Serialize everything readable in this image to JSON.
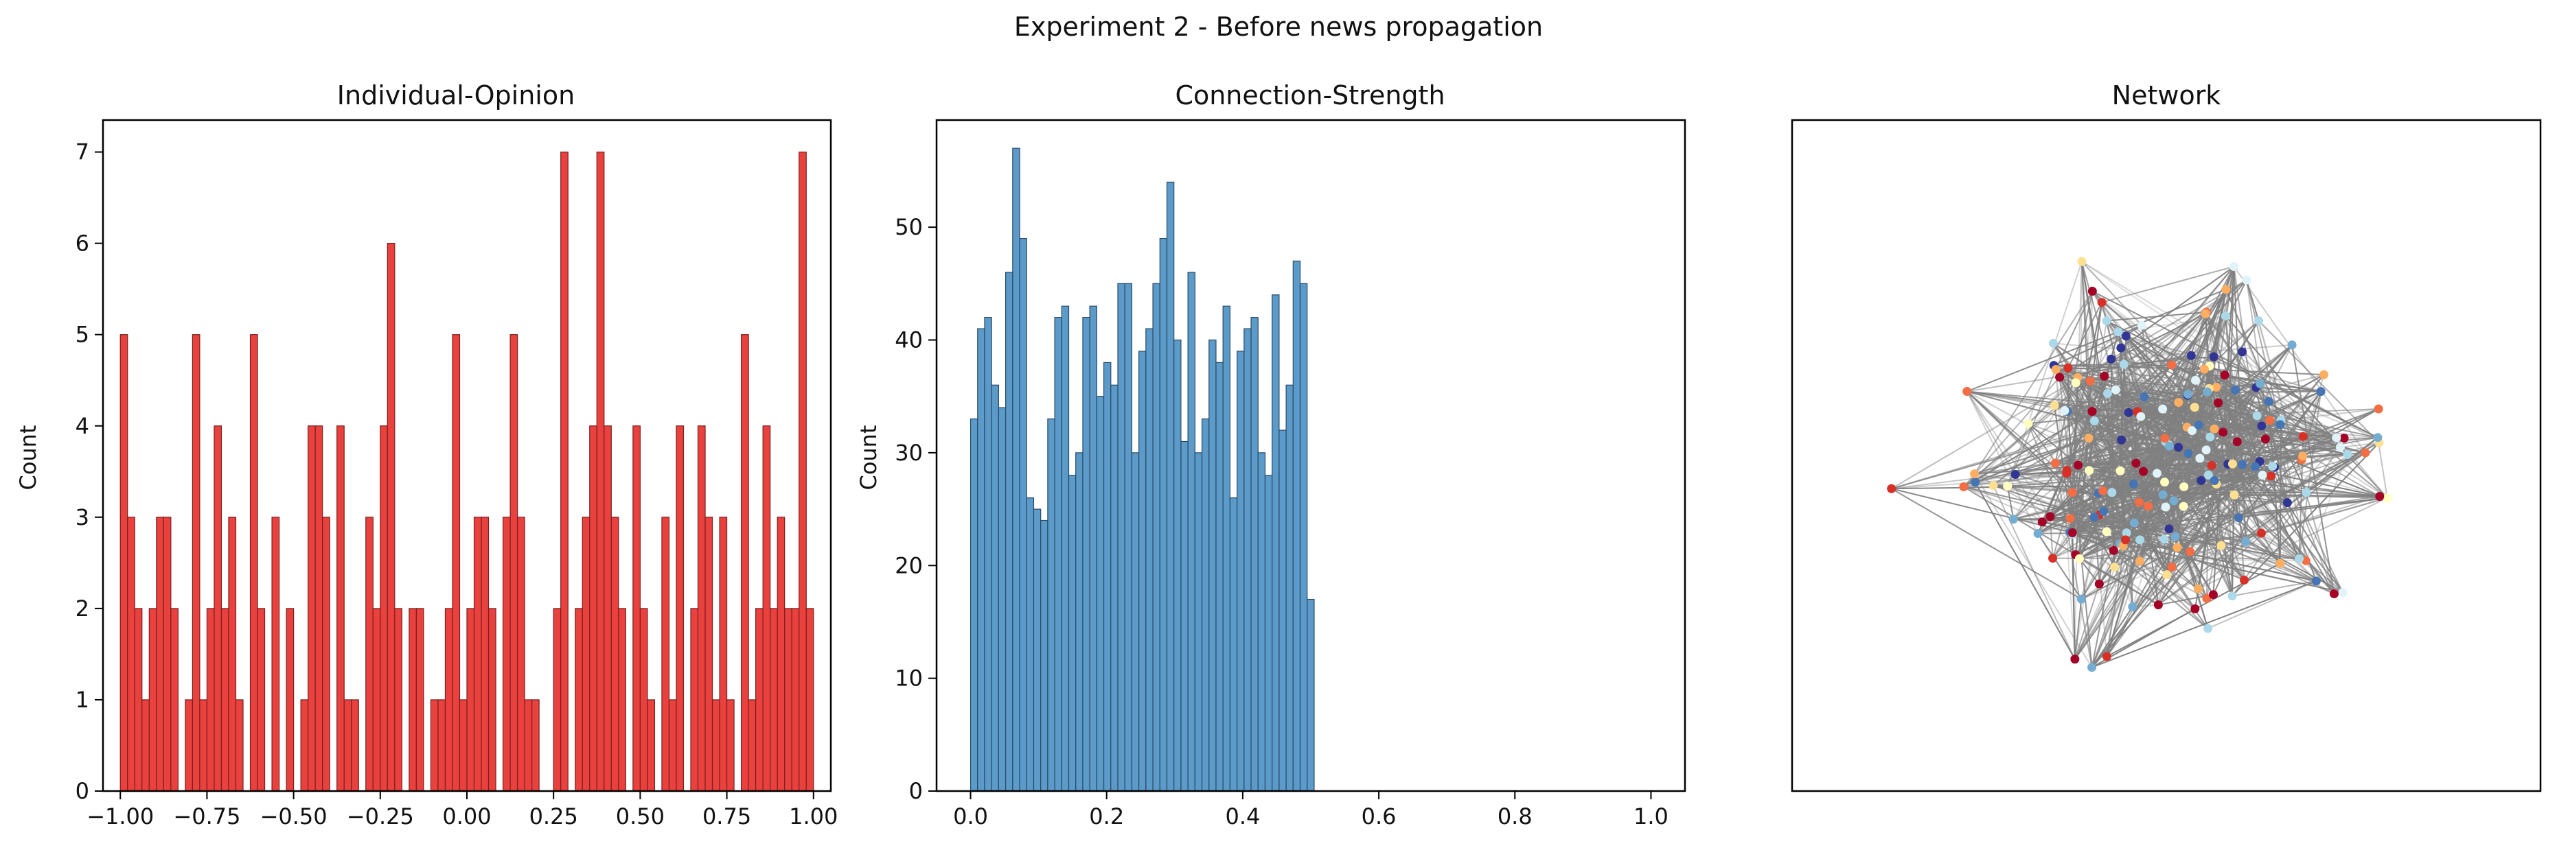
{
  "figure": {
    "title": "Experiment 2 - Before news propagation"
  },
  "chart_data": [
    {
      "type": "bar",
      "title": "Individual-Opinion",
      "xlabel": "",
      "ylabel": "Count",
      "xlim": [
        -1.05,
        1.05
      ],
      "ylim": [
        0,
        7.35
      ],
      "bin_range": [
        -1.0,
        1.0
      ],
      "bar_color": "#e8413e",
      "edge_color": "#7a2020",
      "xticks": [
        -1.0,
        -0.75,
        -0.5,
        -0.25,
        0.0,
        0.25,
        0.5,
        0.75,
        1.0
      ],
      "xtick_labels": [
        "−1.00",
        "−0.75",
        "−0.50",
        "−0.25",
        "0.00",
        "0.25",
        "0.50",
        "0.75",
        "1.00"
      ],
      "yticks": [
        0,
        1,
        2,
        3,
        4,
        5,
        6,
        7
      ],
      "ytick_labels": [
        "0",
        "1",
        "2",
        "3",
        "4",
        "5",
        "6",
        "7"
      ],
      "values": [
        5,
        3,
        2,
        1,
        2,
        3,
        3,
        2,
        0,
        1,
        5,
        1,
        2,
        4,
        2,
        3,
        1,
        0,
        5,
        2,
        0,
        3,
        0,
        2,
        0,
        1,
        4,
        4,
        3,
        0,
        4,
        1,
        1,
        0,
        3,
        2,
        4,
        6,
        2,
        0,
        2,
        2,
        0,
        1,
        1,
        2,
        5,
        1,
        2,
        3,
        3,
        2,
        0,
        3,
        5,
        3,
        1,
        1,
        0,
        0,
        2,
        7,
        0,
        2,
        3,
        4,
        7,
        4,
        3,
        2,
        0,
        4,
        2,
        1,
        0,
        3,
        1,
        4,
        0,
        2,
        4,
        3,
        1,
        3,
        1,
        0,
        5,
        1,
        2,
        4,
        2,
        3,
        2,
        2,
        7,
        2
      ]
    },
    {
      "type": "bar",
      "title": "Connection-Strength",
      "xlabel": "",
      "ylabel": "Count",
      "xlim": [
        -0.05,
        1.05
      ],
      "ylim": [
        0,
        59.5
      ],
      "bin_range": [
        0.0,
        0.505
      ],
      "bar_color": "#5b9ac9",
      "edge_color": "#2a4a63",
      "xticks": [
        0.0,
        0.2,
        0.4,
        0.6,
        0.8,
        1.0
      ],
      "xtick_labels": [
        "0.0",
        "0.2",
        "0.4",
        "0.6",
        "0.8",
        "1.0"
      ],
      "yticks": [
        0,
        10,
        20,
        30,
        40,
        50
      ],
      "ytick_labels": [
        "0",
        "10",
        "20",
        "30",
        "40",
        "50"
      ],
      "values": [
        33,
        41,
        42,
        36,
        34,
        46,
        57,
        49,
        26,
        25,
        24,
        33,
        42,
        43,
        28,
        30,
        42,
        43,
        35,
        38,
        36,
        45,
        45,
        30,
        39,
        41,
        45,
        49,
        54,
        40,
        31,
        46,
        30,
        33,
        40,
        38,
        43,
        26,
        39,
        41,
        42,
        30,
        28,
        44,
        32,
        36,
        47,
        45,
        17
      ]
    },
    {
      "type": "network",
      "title": "Network",
      "edge_color": "#808080",
      "node_colors": [
        "#a50026",
        "#d73027",
        "#f46d43",
        "#fdae61",
        "#fee090",
        "#ffffbf",
        "#e0f3f8",
        "#abd9e9",
        "#74add1",
        "#4575b4",
        "#313695"
      ],
      "node_count": 200
    }
  ]
}
